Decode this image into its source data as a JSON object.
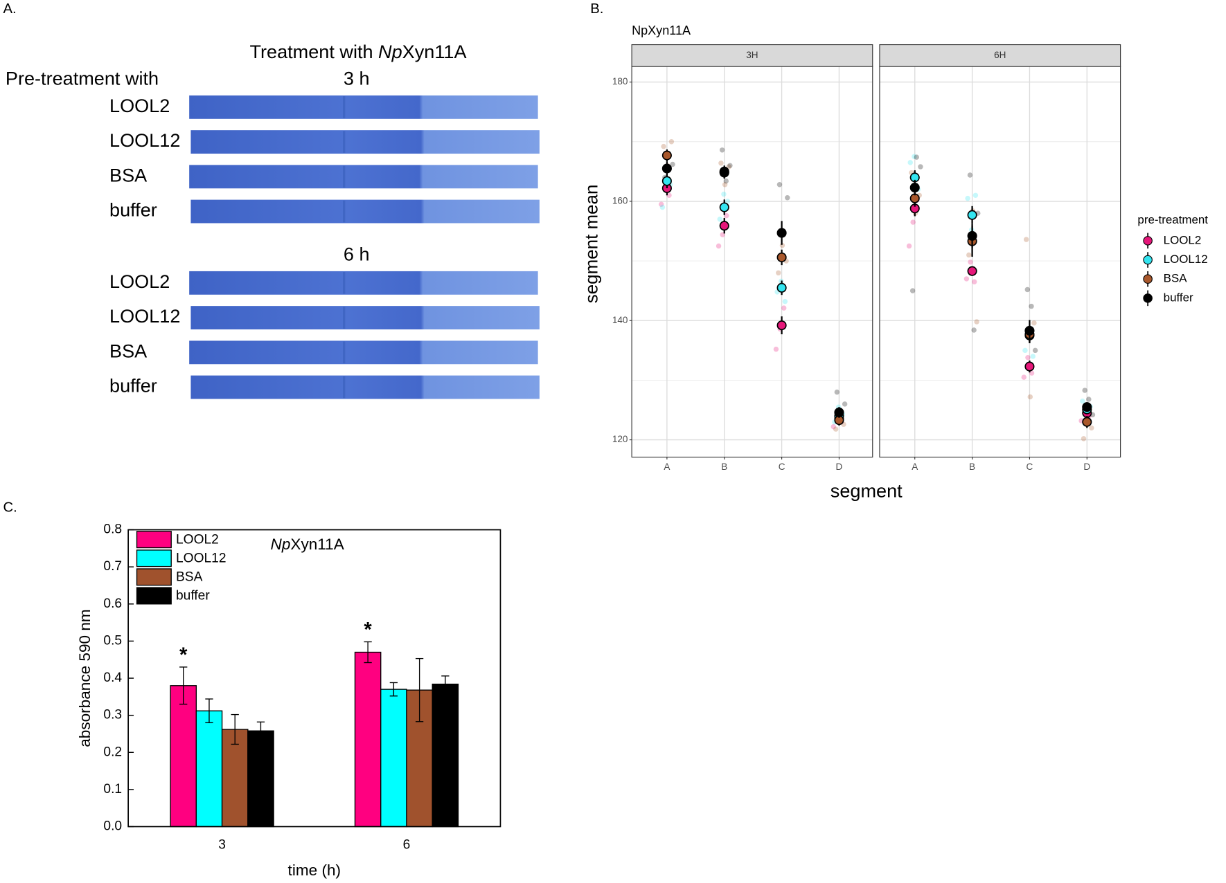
{
  "panel_a": {
    "label": "A.",
    "title": "Treatment with ",
    "title_italic": "Np",
    "title_suffix": "Xyn11A",
    "row_header": "Pre-treatment with",
    "groups": [
      {
        "time": "3 h",
        "rows": [
          "LOOL2",
          "LOOL12",
          "BSA",
          "buffer"
        ]
      },
      {
        "time": "6 h",
        "rows": [
          "LOOL2",
          "LOOL12",
          "BSA",
          "buffer"
        ]
      }
    ]
  },
  "chart_data": [
    {
      "type": "dot",
      "panel_label": "B.",
      "title": "NpXyn11A",
      "xlabel": "segment",
      "ylabel": "segment mean",
      "legend_title": "pre-treatment",
      "legend": "right",
      "facets": [
        "3H",
        "6H"
      ],
      "categories": [
        "A",
        "B",
        "C",
        "D"
      ],
      "ylim": [
        117.1,
        182.6
      ],
      "yticks": [
        120,
        140,
        160,
        180
      ],
      "minor_grid": [
        130,
        150,
        170
      ],
      "grid": true,
      "series": [
        {
          "name": "LOOL2",
          "color": "#e6177a",
          "values": [
            [
              162.2,
              155.9,
              139.2,
              123.5
            ],
            [
              158.8,
              148.3,
              132.3,
              124.5
            ]
          ],
          "errors": [
            [
              1.2,
              1.3,
              1.5,
              0.8
            ],
            [
              1.3,
              0.8,
              1.0,
              0.8
            ]
          ],
          "points": [
            [
              [
                159.5,
                163.2,
                161.0
              ],
              [
                152.5,
                154.4,
                157.6
              ],
              [
                135.2,
                138.6,
                142.1
              ],
              [
                122.2,
                124.6,
                123.0
              ]
            ],
            [
              [
                152.5,
                156.5,
                160.2
              ],
              [
                147.0,
                149.8,
                146.5
              ],
              [
                130.5,
                133.8,
                131.2
              ],
              [
                123.2,
                125.6,
                124.0
              ]
            ]
          ]
        },
        {
          "name": "LOOL12",
          "color": "#33e5f0",
          "values": [
            [
              163.4,
              159.0,
              145.5,
              124.0
            ],
            [
              164.0,
              157.7,
              137.5,
              125.1
            ]
          ],
          "errors": [
            [
              1.2,
              1.3,
              1.2,
              0.8
            ],
            [
              1.2,
              1.5,
              1.2,
              0.8
            ]
          ],
          "points": [
            [
              [
                159.0,
                165.5,
                162.8
              ],
              [
                157.0,
                161.2,
                160.0
              ],
              [
                144.8,
                146.6,
                143.2
              ],
              [
                123.0,
                125.5,
                124.3
              ]
            ],
            [
              [
                166.5,
                167.5,
                162.0
              ],
              [
                160.5,
                155.2,
                161.0
              ],
              [
                135.0,
                138.4,
                134.0
              ],
              [
                126.5,
                124.0,
                125.6
              ]
            ]
          ]
        },
        {
          "name": "BSA",
          "color": "#a9582c",
          "values": [
            [
              167.7,
              164.8,
              150.6,
              123.3
            ],
            [
              160.5,
              153.3,
              137.7,
              123.0
            ]
          ],
          "errors": [
            [
              1.0,
              1.0,
              1.3,
              0.9
            ],
            [
              1.4,
              2.6,
              1.5,
              1.0
            ]
          ],
          "points": [
            [
              [
                169.2,
                166.0,
                170.0
              ],
              [
                166.4,
                162.8,
                165.8
              ],
              [
                148.0,
                152.6,
                150.0
              ],
              [
                121.8,
                124.8,
                122.6
              ]
            ],
            [
              [
                164.8,
                158.0,
                161.0
              ],
              [
                151.0,
                158.4,
                139.8
              ],
              [
                153.6,
                127.2,
                139.6
              ],
              [
                120.2,
                124.6,
                122.0
              ]
            ]
          ]
        },
        {
          "name": "buffer",
          "color": "#000000",
          "values": [
            [
              165.5,
              165.0,
              154.7,
              124.6
            ],
            [
              162.3,
              154.2,
              138.3,
              125.5
            ]
          ],
          "errors": [
            [
              1.2,
              1.0,
              2.0,
              0.9
            ],
            [
              1.3,
              2.0,
              1.8,
              0.8
            ]
          ],
          "points": [
            [
              [
                164.0,
                168.0,
                166.2
              ],
              [
                168.6,
                163.4,
                166.0
              ],
              [
                162.8,
                155.0,
                160.6
              ],
              [
                128.0,
                123.0,
                126.0
              ]
            ],
            [
              [
                145.0,
                167.4,
                165.8
              ],
              [
                164.4,
                138.4,
                158.0
              ],
              [
                145.2,
                142.4,
                135.0
              ],
              [
                128.3,
                126.8,
                124.2
              ]
            ]
          ]
        }
      ]
    },
    {
      "type": "bar",
      "panel_label": "C.",
      "title_italic": "Np",
      "title": "Xyn11A",
      "xlabel": "time (h)",
      "ylabel": "absorbance 590 nm",
      "legend": "upper left",
      "categories": [
        "3",
        "6"
      ],
      "significance": [
        "*",
        "*"
      ],
      "ylim": [
        0,
        0.8
      ],
      "yticks": [
        {
          "value": 0,
          "label": "0.0"
        },
        0.1,
        0.2,
        0.3,
        0.4,
        0.5,
        0.6,
        0.7,
        0.8
      ],
      "series": [
        {
          "name": "LOOL2",
          "color": "#ff0080",
          "values": [
            0.38,
            0.47
          ],
          "errors": [
            0.05,
            0.028
          ]
        },
        {
          "name": "LOOL12",
          "color": "#00ffff",
          "values": [
            0.312,
            0.37
          ],
          "errors": [
            0.032,
            0.018
          ]
        },
        {
          "name": "BSA",
          "color": "#a0522d",
          "values": [
            0.262,
            0.368
          ],
          "errors": [
            0.04,
            0.085
          ]
        },
        {
          "name": "buffer",
          "color": "#000000",
          "values": [
            0.258,
            0.384
          ],
          "errors": [
            0.024,
            0.022
          ]
        }
      ]
    }
  ]
}
